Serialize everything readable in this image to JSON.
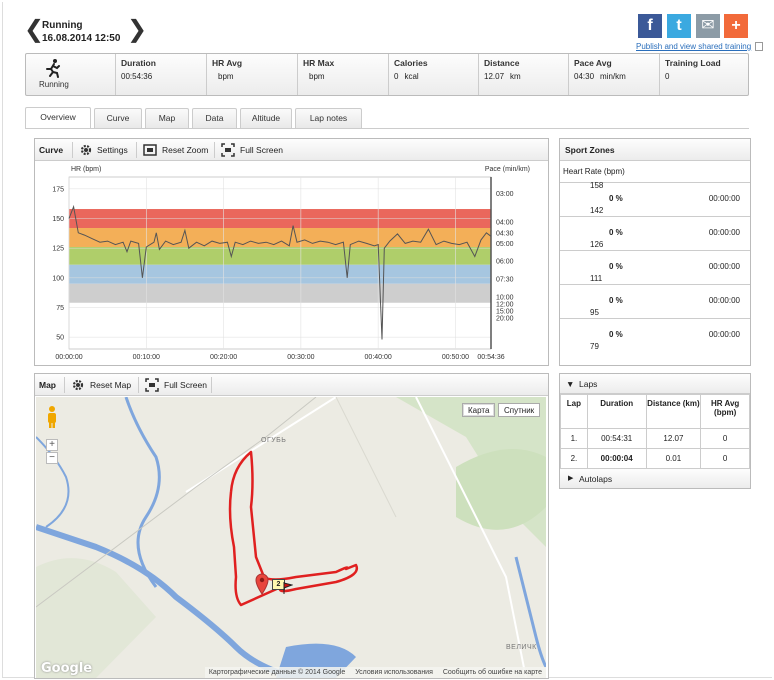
{
  "header": {
    "sport": "Running",
    "date": "16.08.2014 12:50",
    "prev": "❮",
    "next": "❯",
    "publish_link": "Publish and view shared training",
    "share": [
      {
        "name": "facebook",
        "glyph": "f",
        "color": "#3b5998"
      },
      {
        "name": "twitter",
        "glyph": "t",
        "color": "#3ba9e0"
      },
      {
        "name": "email",
        "glyph": "✉",
        "color": "#8c9ba6"
      },
      {
        "name": "more",
        "glyph": "+",
        "color": "#f26a3a"
      }
    ]
  },
  "summary": {
    "sport_label": "Running",
    "cells": [
      {
        "label": "Duration",
        "value": "00:54:36",
        "unit": ""
      },
      {
        "label": "HR Avg",
        "value": "",
        "unit": "bpm"
      },
      {
        "label": "HR Max",
        "value": "",
        "unit": "bpm"
      },
      {
        "label": "Calories",
        "value": "0",
        "unit": "kcal"
      },
      {
        "label": "Distance",
        "value": "12.07",
        "unit": "km"
      },
      {
        "label": "Pace Avg",
        "value": "04:30",
        "unit": "min/km"
      },
      {
        "label": "Training Load",
        "value": "0",
        "unit": ""
      }
    ]
  },
  "tabs": [
    "Overview",
    "Curve",
    "Map",
    "Data",
    "Altitude",
    "Lap notes"
  ],
  "curve": {
    "title": "Curve",
    "settings": "Settings",
    "reset_zoom": "Reset Zoom",
    "full_screen": "Full Screen"
  },
  "chart_data": {
    "type": "line",
    "ylabel_left": "HR (bpm)",
    "ylabel_right": "Pace (min/km)",
    "y_ticks_left": [
      "175",
      "150",
      "125",
      "100",
      "75",
      "50"
    ],
    "y_ticks_right": [
      "03:00",
      "04:00",
      "04:30",
      "05:00",
      "06:00",
      "07:30",
      "10:00",
      "12:00",
      "15:00",
      "20:00"
    ],
    "x_ticks": [
      "00:00:00",
      "00:10:00",
      "00:20:00",
      "00:30:00",
      "00:40:00",
      "00:50:00",
      "00:54:36"
    ],
    "zones": [
      {
        "from": 142,
        "to": 158,
        "color": "#e8574a"
      },
      {
        "from": 126,
        "to": 142,
        "color": "#f2a646"
      },
      {
        "from": 111,
        "to": 126,
        "color": "#a6c95a"
      },
      {
        "from": 95,
        "to": 111,
        "color": "#9cc0dd"
      },
      {
        "from": 79,
        "to": 95,
        "color": "#c9c9c9"
      }
    ],
    "ylim": [
      40,
      185
    ],
    "xlim_min": [
      0,
      54.6
    ],
    "hr_series": [
      [
        0,
        150
      ],
      [
        0.6,
        160
      ],
      [
        1.2,
        138
      ],
      [
        2,
        136
      ],
      [
        3,
        133
      ],
      [
        4,
        130
      ],
      [
        5,
        131
      ],
      [
        6,
        128
      ],
      [
        7,
        130
      ],
      [
        7.5,
        122
      ],
      [
        8,
        131
      ],
      [
        9,
        129
      ],
      [
        9.5,
        100
      ],
      [
        10,
        126
      ],
      [
        11,
        130
      ],
      [
        11.3,
        138
      ],
      [
        11.7,
        124
      ],
      [
        12.5,
        131
      ],
      [
        13.5,
        128
      ],
      [
        14.5,
        130
      ],
      [
        15,
        140
      ],
      [
        15.5,
        125
      ],
      [
        16.5,
        130
      ],
      [
        17.5,
        127
      ],
      [
        18.5,
        131
      ],
      [
        19.5,
        129
      ],
      [
        20.5,
        130
      ],
      [
        21,
        118
      ],
      [
        21.5,
        130
      ],
      [
        22.5,
        128
      ],
      [
        23.5,
        131
      ],
      [
        24.5,
        129
      ],
      [
        25.5,
        130
      ],
      [
        26.5,
        128
      ],
      [
        27.5,
        131
      ],
      [
        28.5,
        127
      ],
      [
        29,
        144
      ],
      [
        29.5,
        130
      ],
      [
        30.5,
        132
      ],
      [
        31.5,
        129
      ],
      [
        32.5,
        131
      ],
      [
        33.5,
        130
      ],
      [
        34.5,
        128
      ],
      [
        35.5,
        130
      ],
      [
        36,
        100
      ],
      [
        36.4,
        128
      ],
      [
        37.5,
        131
      ],
      [
        38.5,
        129
      ],
      [
        39.5,
        127
      ],
      [
        40,
        128
      ],
      [
        40.5,
        48
      ],
      [
        40.8,
        125
      ],
      [
        41.5,
        131
      ],
      [
        42.5,
        137
      ],
      [
        43.5,
        129
      ],
      [
        44.5,
        131
      ],
      [
        45.5,
        130
      ],
      [
        46.5,
        141
      ],
      [
        47.5,
        128
      ],
      [
        48.5,
        131
      ],
      [
        49.5,
        129
      ],
      [
        50.5,
        128
      ],
      [
        51.5,
        130
      ],
      [
        52.5,
        118
      ],
      [
        53.3,
        132
      ],
      [
        54,
        138
      ],
      [
        54.6,
        135
      ]
    ]
  },
  "map": {
    "title": "Map",
    "reset": "Reset Map",
    "full_screen": "Full Screen",
    "type_map": "Карта",
    "type_sat": "Спутник",
    "zoom_in": "+",
    "zoom_out": "−",
    "logo": "Google",
    "attrib_data": "Картографические данные © 2014 Google",
    "attrib_terms": "Условия использования",
    "attrib_report": "Сообщить об ошибке на карте",
    "label_village": "ОГУБЬ",
    "label_right": "ВЕЛИЧК",
    "marker_label": "2"
  },
  "zones": {
    "title": "Sport Zones",
    "subtitle": "Heart Rate (bpm)",
    "rows": [
      {
        "top": "158",
        "bottom": "142",
        "pct": "0 %",
        "time": "00:00:00"
      },
      {
        "top": "",
        "bottom": "126",
        "pct": "0 %",
        "time": "00:00:00"
      },
      {
        "top": "",
        "bottom": "111",
        "pct": "0 %",
        "time": "00:00:00"
      },
      {
        "top": "",
        "bottom": "95",
        "pct": "0 %",
        "time": "00:00:00"
      },
      {
        "top": "",
        "bottom": "79",
        "pct": "0 %",
        "time": "00:00:00"
      }
    ]
  },
  "laps": {
    "title": "Laps",
    "headers": [
      "Lap",
      "Duration",
      "Distance (km)",
      "HR Avg (bpm)"
    ],
    "rows": [
      {
        "lap": "1.",
        "duration": "00:54:31",
        "distance": "12.07",
        "hr": "0",
        "bold": false
      },
      {
        "lap": "2.",
        "duration": "00:00:04",
        "distance": "0.01",
        "hr": "0",
        "bold": true
      }
    ],
    "autolaps": "Autolaps"
  }
}
